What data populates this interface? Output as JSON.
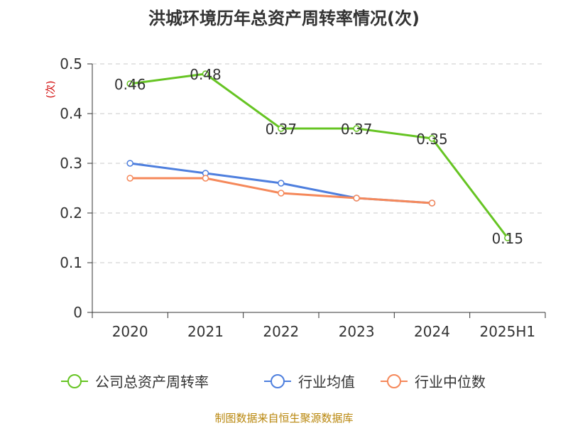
{
  "title": "洪城环境历年总资产周转率情况(次)",
  "footer": "制图数据来自恒生聚源数据库",
  "chart_data": {
    "type": "line",
    "title": "洪城环境历年总资产周转率情况(次)",
    "ylabel": "(次)",
    "xlabel": "",
    "categories": [
      "2020",
      "2021",
      "2022",
      "2023",
      "2024",
      "2025H1"
    ],
    "ylim": [
      0,
      0.5
    ],
    "yticks": [
      "0",
      "0.1",
      "0.2",
      "0.3",
      "0.4",
      "0.5"
    ],
    "grid": true,
    "legend_position": "bottom",
    "series": [
      {
        "name": "公司总资产周转率",
        "color": "#66c423",
        "values": [
          0.46,
          0.48,
          0.37,
          0.37,
          0.35,
          0.15
        ],
        "labels": [
          "0.46",
          "0.48",
          "0.37",
          "0.37",
          "0.35",
          "0.15"
        ]
      },
      {
        "name": "行业均值",
        "color": "#4e7fde",
        "values": [
          0.3,
          0.28,
          0.26,
          0.23,
          0.22,
          null
        ]
      },
      {
        "name": "行业中位数",
        "color": "#f5885a",
        "values": [
          0.27,
          0.27,
          0.24,
          0.23,
          0.22,
          null
        ]
      }
    ]
  }
}
